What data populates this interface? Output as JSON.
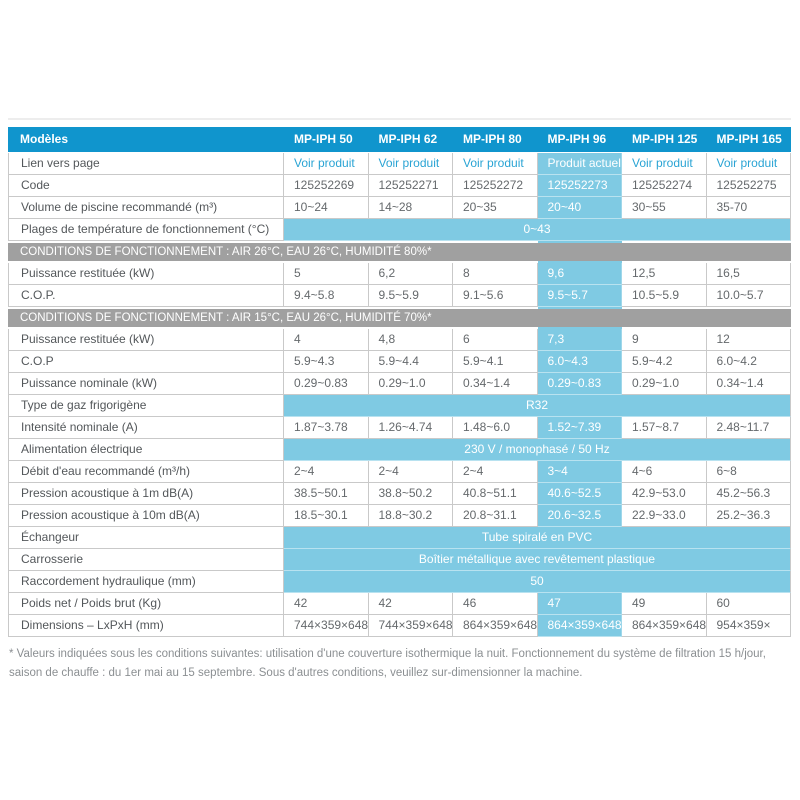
{
  "colors": {
    "header_blue": "#1095cd",
    "highlight_blue": "#7fcae3",
    "section_gray": "#a0a0a0",
    "link_blue": "#2aa4d4",
    "border_gray": "#c9c9c9"
  },
  "table": {
    "header": {
      "label": "Modèles",
      "models": [
        "MP-IPH 50",
        "MP-IPH 62",
        "MP-IPH 80",
        "MP-IPH 96",
        "MP-IPH 125",
        "MP-IPH 165"
      ],
      "current_model_index": 3
    },
    "rows": [
      {
        "type": "link",
        "label": "Lien vers page",
        "values": [
          "Voir produit",
          "Voir produit",
          "Voir produit",
          "Produit actuel",
          "Voir produit",
          "Voir produit"
        ]
      },
      {
        "type": "values",
        "label": "Code",
        "values": [
          "125252269",
          "125252271",
          "125252272",
          "125252273",
          "125252274",
          "125252275"
        ]
      },
      {
        "type": "values",
        "label": "Volume de piscine recommandé (m³)",
        "values": [
          "10~24",
          "14~28",
          "20~35",
          "20~40",
          "30~55",
          "35-70"
        ]
      },
      {
        "type": "span",
        "label": "Plages de température de fonctionnement (°C)",
        "value": "0~43"
      },
      {
        "type": "section",
        "label": "CONDITIONS DE FONCTIONNEMENT : AIR 26°C, EAU 26°C, HUMIDITÉ 80%*"
      },
      {
        "type": "values",
        "label": "Puissance restituée (kW)",
        "values": [
          "5",
          "6,2",
          "8",
          "9,6",
          "12,5",
          "16,5"
        ]
      },
      {
        "type": "values",
        "label": "C.O.P.",
        "values": [
          "9.4~5.8",
          "9.5~5.9",
          "9.1~5.6",
          "9.5~5.7",
          "10.5~5.9",
          "10.0~5.7"
        ]
      },
      {
        "type": "section",
        "label": "CONDITIONS DE FONCTIONNEMENT : AIR 15°C, EAU 26°C, HUMIDITÉ 70%*"
      },
      {
        "type": "values",
        "label": "Puissance restituée (kW)",
        "values": [
          "4",
          "4,8",
          "6",
          "7,3",
          "9",
          "12"
        ]
      },
      {
        "type": "values",
        "label": "C.O.P",
        "values": [
          "5.9~4.3",
          "5.9~4.4",
          "5.9~4.1",
          "6.0~4.3",
          "5.9~4.2",
          "6.0~4.2"
        ]
      },
      {
        "type": "values",
        "label": "Puissance nominale (kW)",
        "values": [
          "0.29~0.83",
          "0.29~1.0",
          "0.34~1.4",
          "0.29~0.83",
          "0.29~1.0",
          "0.34~1.4"
        ]
      },
      {
        "type": "span",
        "label": "Type de gaz frigorigène",
        "value": "R32"
      },
      {
        "type": "values",
        "label": "Intensité nominale (A)",
        "values": [
          "1.87~3.78",
          "1.26~4.74",
          "1.48~6.0",
          "1.52~7.39",
          "1.57~8.7",
          "2.48~11.7"
        ]
      },
      {
        "type": "span",
        "label": "Alimentation électrique",
        "value": "230 V / monophasé / 50 Hz"
      },
      {
        "type": "values",
        "label": "Débit d'eau recommandé (m³/h)",
        "values": [
          "2~4",
          "2~4",
          "2~4",
          "3~4",
          "4~6",
          "6~8"
        ]
      },
      {
        "type": "values",
        "label": "Pression acoustique à 1m dB(A)",
        "values": [
          "38.5~50.1",
          "38.8~50.2",
          "40.8~51.1",
          "40.6~52.5",
          "42.9~53.0",
          "45.2~56.3"
        ]
      },
      {
        "type": "values",
        "label": "Pression acoustique à 10m dB(A)",
        "values": [
          "18.5~30.1",
          "18.8~30.2",
          "20.8~31.1",
          "20.6~32.5",
          "22.9~33.0",
          "25.2~36.3"
        ]
      },
      {
        "type": "span",
        "label": "Échangeur",
        "value": "Tube spiralé en PVC"
      },
      {
        "type": "span",
        "label": "Carrosserie",
        "value": "Boîtier métallique avec revêtement plastique"
      },
      {
        "type": "span",
        "label": "Raccordement hydraulique (mm)",
        "value": "50"
      },
      {
        "type": "values",
        "label": "Poids net / Poids brut (Kg)",
        "values": [
          "42",
          "42",
          "46",
          "47",
          "49",
          "60"
        ]
      },
      {
        "type": "values",
        "label": "Dimensions – LxPxH (mm)",
        "values": [
          "744×359×648",
          "744×359×648",
          "864×359×648",
          "864×359×648",
          "864×359×648",
          "954×359×"
        ]
      }
    ]
  },
  "page": {
    "footnote": "* Valeurs indiquées sous les conditions suivantes: utilisation d'une couverture isothermique la nuit. Fonctionnement du système de filtration 15 h/jour, saison de chauffe : du 1er mai au 15 septembre. Sous d'autres conditions, veuillez sur-dimensionner la machine."
  }
}
